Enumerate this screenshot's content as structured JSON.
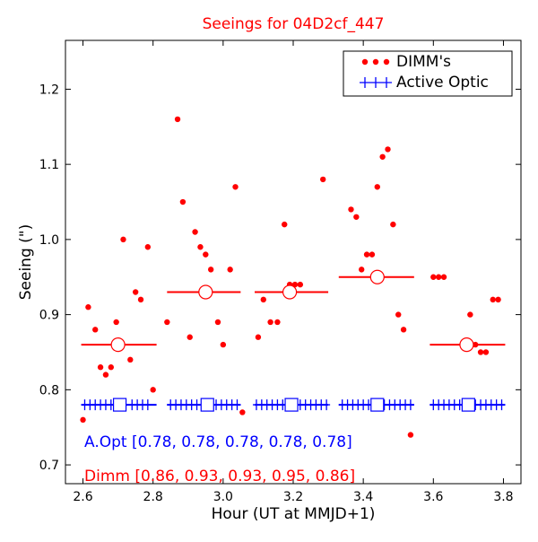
{
  "chart_data": {
    "type": "scatter",
    "title": "Seeings for 04D2cf_447",
    "xlabel": "Hour (UT at MMJD+1)",
    "ylabel": "Seeing (\")",
    "xlim": [
      2.55,
      3.85
    ],
    "ylim": [
      0.675,
      1.265
    ],
    "xticks": [
      2.6,
      2.8,
      3.0,
      3.2,
      3.4,
      3.6,
      3.8
    ],
    "xtick_labels": [
      "2.6",
      "2.8",
      "3.0",
      "3.2",
      "3.4",
      "3.6",
      "3.8"
    ],
    "yticks": [
      0.7,
      0.8,
      0.9,
      1.0,
      1.1,
      1.2
    ],
    "ytick_labels": [
      "0.7",
      "0.8",
      "0.9",
      "1.0",
      "1.1",
      "1.2"
    ],
    "grid": false,
    "legend_position": "top-right",
    "colors": {
      "dimm": "#ff0000",
      "aopt": "#0000ff",
      "title": "#ff0000"
    },
    "series": [
      {
        "name": "DIMM's",
        "marker": "dot",
        "points": [
          [
            2.6,
            0.76
          ],
          [
            2.615,
            0.91
          ],
          [
            2.635,
            0.88
          ],
          [
            2.65,
            0.83
          ],
          [
            2.665,
            0.82
          ],
          [
            2.68,
            0.83
          ],
          [
            2.695,
            0.89
          ],
          [
            2.715,
            1.0
          ],
          [
            2.735,
            0.84
          ],
          [
            2.75,
            0.93
          ],
          [
            2.765,
            0.92
          ],
          [
            2.785,
            0.99
          ],
          [
            2.8,
            0.8
          ],
          [
            2.84,
            0.89
          ],
          [
            2.87,
            1.16
          ],
          [
            2.885,
            1.05
          ],
          [
            2.905,
            0.87
          ],
          [
            2.92,
            1.01
          ],
          [
            2.935,
            0.99
          ],
          [
            2.95,
            0.98
          ],
          [
            2.965,
            0.96
          ],
          [
            2.985,
            0.89
          ],
          [
            3.0,
            0.86
          ],
          [
            3.02,
            0.96
          ],
          [
            3.035,
            1.07
          ],
          [
            3.055,
            0.77
          ],
          [
            3.1,
            0.87
          ],
          [
            3.115,
            0.92
          ],
          [
            3.135,
            0.89
          ],
          [
            3.155,
            0.89
          ],
          [
            3.175,
            1.02
          ],
          [
            3.19,
            0.94
          ],
          [
            3.205,
            0.94
          ],
          [
            3.22,
            0.94
          ],
          [
            3.285,
            1.08
          ],
          [
            3.365,
            1.04
          ],
          [
            3.38,
            1.03
          ],
          [
            3.395,
            0.96
          ],
          [
            3.41,
            0.98
          ],
          [
            3.425,
            0.98
          ],
          [
            3.44,
            1.07
          ],
          [
            3.455,
            1.11
          ],
          [
            3.47,
            1.12
          ],
          [
            3.485,
            1.02
          ],
          [
            3.5,
            0.9
          ],
          [
            3.515,
            0.88
          ],
          [
            3.535,
            0.74
          ],
          [
            3.6,
            0.95
          ],
          [
            3.615,
            0.95
          ],
          [
            3.63,
            0.95
          ],
          [
            3.705,
            0.9
          ],
          [
            3.72,
            0.86
          ],
          [
            3.735,
            0.85
          ],
          [
            3.75,
            0.85
          ],
          [
            3.77,
            0.92
          ],
          [
            3.785,
            0.92
          ]
        ]
      },
      {
        "name": "Active Optic",
        "marker": "plus",
        "points": [
          [
            2.605,
            0.78
          ],
          [
            2.62,
            0.78
          ],
          [
            2.635,
            0.78
          ],
          [
            2.65,
            0.78
          ],
          [
            2.665,
            0.78
          ],
          [
            2.68,
            0.78
          ],
          [
            2.72,
            0.78
          ],
          [
            2.74,
            0.78
          ],
          [
            2.755,
            0.78
          ],
          [
            2.77,
            0.78
          ],
          [
            2.785,
            0.78
          ],
          [
            2.85,
            0.78
          ],
          [
            2.865,
            0.78
          ],
          [
            2.88,
            0.78
          ],
          [
            2.895,
            0.78
          ],
          [
            2.91,
            0.78
          ],
          [
            2.925,
            0.78
          ],
          [
            2.94,
            0.78
          ],
          [
            2.98,
            0.78
          ],
          [
            2.995,
            0.78
          ],
          [
            3.01,
            0.78
          ],
          [
            3.025,
            0.78
          ],
          [
            3.04,
            0.78
          ],
          [
            3.095,
            0.78
          ],
          [
            3.11,
            0.78
          ],
          [
            3.125,
            0.78
          ],
          [
            3.14,
            0.78
          ],
          [
            3.155,
            0.78
          ],
          [
            3.17,
            0.78
          ],
          [
            3.22,
            0.78
          ],
          [
            3.235,
            0.78
          ],
          [
            3.25,
            0.78
          ],
          [
            3.265,
            0.78
          ],
          [
            3.28,
            0.78
          ],
          [
            3.295,
            0.78
          ],
          [
            3.34,
            0.78
          ],
          [
            3.355,
            0.78
          ],
          [
            3.37,
            0.78
          ],
          [
            3.385,
            0.78
          ],
          [
            3.4,
            0.78
          ],
          [
            3.415,
            0.78
          ],
          [
            3.46,
            0.78
          ],
          [
            3.475,
            0.78
          ],
          [
            3.49,
            0.78
          ],
          [
            3.505,
            0.78
          ],
          [
            3.52,
            0.78
          ],
          [
            3.535,
            0.78
          ],
          [
            3.6,
            0.78
          ],
          [
            3.615,
            0.78
          ],
          [
            3.63,
            0.78
          ],
          [
            3.645,
            0.78
          ],
          [
            3.66,
            0.78
          ],
          [
            3.675,
            0.78
          ],
          [
            3.72,
            0.78
          ],
          [
            3.735,
            0.78
          ],
          [
            3.75,
            0.78
          ],
          [
            3.765,
            0.78
          ],
          [
            3.78,
            0.78
          ],
          [
            3.795,
            0.78
          ]
        ]
      }
    ],
    "segments": {
      "dimm_mean": [
        {
          "x0": 2.595,
          "x1": 2.81,
          "y": 0.86,
          "marker_x": 2.7
        },
        {
          "x0": 2.84,
          "x1": 3.05,
          "y": 0.93,
          "marker_x": 2.95
        },
        {
          "x0": 3.09,
          "x1": 3.3,
          "y": 0.93,
          "marker_x": 3.19
        },
        {
          "x0": 3.33,
          "x1": 3.545,
          "y": 0.95,
          "marker_x": 3.44
        },
        {
          "x0": 3.59,
          "x1": 3.805,
          "y": 0.86,
          "marker_x": 3.695
        }
      ],
      "aopt_mean": [
        {
          "x0": 2.595,
          "x1": 2.81,
          "y": 0.78,
          "marker_x": 2.705
        },
        {
          "x0": 2.84,
          "x1": 3.05,
          "y": 0.78,
          "marker_x": 2.955
        },
        {
          "x0": 3.09,
          "x1": 3.3,
          "y": 0.78,
          "marker_x": 3.195
        },
        {
          "x0": 3.33,
          "x1": 3.545,
          "y": 0.78,
          "marker_x": 3.44
        },
        {
          "x0": 3.59,
          "x1": 3.805,
          "y": 0.78,
          "marker_x": 3.7
        }
      ]
    },
    "annotations": {
      "aopt": "A.Opt [0.78, 0.78, 0.78, 0.78, 0.78]",
      "dimm": "Dimm [0.86, 0.93, 0.93, 0.95, 0.86]"
    }
  }
}
